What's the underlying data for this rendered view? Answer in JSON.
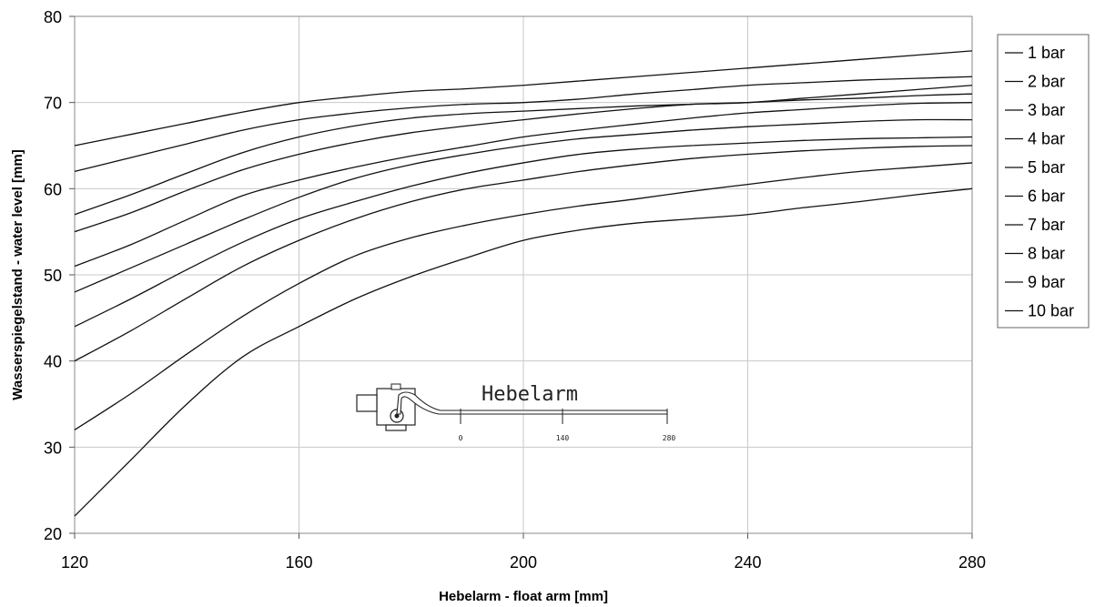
{
  "chart_data": {
    "type": "line",
    "xlabel": "Hebelarm - float arm [mm]",
    "ylabel": "Wasserspiegelstand - water level [mm]",
    "xlim": [
      120,
      280
    ],
    "ylim": [
      20,
      80
    ],
    "xticks": [
      120,
      160,
      200,
      240,
      280
    ],
    "yticks": [
      20,
      30,
      40,
      50,
      60,
      70,
      80
    ],
    "grid": true,
    "legend_position": "right",
    "x": [
      120,
      130,
      140,
      150,
      160,
      170,
      180,
      190,
      200,
      210,
      220,
      230,
      240,
      250,
      260,
      270,
      280
    ],
    "series": [
      {
        "name": "1 bar",
        "values": [
          65,
          66.3,
          67.6,
          68.9,
          70,
          70.7,
          71.3,
          71.6,
          72,
          72.5,
          73,
          73.5,
          74,
          74.5,
          75,
          75.5,
          76
        ]
      },
      {
        "name": "2 bar",
        "values": [
          62,
          63.6,
          65.2,
          66.8,
          68,
          68.8,
          69.4,
          69.8,
          70,
          70.4,
          71,
          71.5,
          72,
          72.3,
          72.6,
          72.8,
          73
        ]
      },
      {
        "name": "3 bar",
        "values": [
          57,
          59.3,
          61.8,
          64.2,
          66,
          67.3,
          68.2,
          68.7,
          69,
          69.3,
          69.6,
          69.8,
          70,
          70.5,
          71,
          71.5,
          72
        ]
      },
      {
        "name": "4 bar",
        "values": [
          55,
          57.2,
          59.8,
          62.2,
          64,
          65.4,
          66.5,
          67.3,
          68,
          68.7,
          69.3,
          69.8,
          70,
          70.3,
          70.5,
          70.8,
          71
        ]
      },
      {
        "name": "5 bar",
        "values": [
          51,
          53.5,
          56.4,
          59.2,
          61,
          62.5,
          63.8,
          64.9,
          66,
          66.8,
          67.5,
          68.2,
          68.8,
          69.2,
          69.6,
          69.9,
          70
        ]
      },
      {
        "name": "6 bar",
        "values": [
          48,
          50.8,
          53.6,
          56.4,
          59,
          61.2,
          62.8,
          64,
          65,
          65.8,
          66.3,
          66.8,
          67.2,
          67.5,
          67.8,
          68,
          68
        ]
      },
      {
        "name": "7 bar",
        "values": [
          44,
          47.2,
          50.6,
          53.8,
          56.5,
          58.5,
          60.3,
          61.8,
          63,
          64,
          64.6,
          65,
          65.3,
          65.6,
          65.8,
          65.9,
          66
        ]
      },
      {
        "name": "8 bar",
        "values": [
          40,
          43.5,
          47.3,
          51,
          54,
          56.5,
          58.5,
          60,
          61,
          62,
          62.8,
          63.5,
          64,
          64.4,
          64.7,
          64.9,
          65
        ]
      },
      {
        "name": "9 bar",
        "values": [
          32,
          36.2,
          40.8,
          45.2,
          49,
          52.2,
          54.3,
          55.8,
          57,
          58,
          58.8,
          59.7,
          60.5,
          61.3,
          62,
          62.5,
          63
        ]
      },
      {
        "name": "10 bar",
        "values": [
          22,
          28.5,
          35,
          40.5,
          44,
          47.2,
          49.8,
          52,
          54,
          55.2,
          56,
          56.5,
          57,
          57.8,
          58.5,
          59.3,
          60
        ]
      }
    ],
    "inset": {
      "title": "Hebelarm",
      "scale_labels": [
        "0",
        "140",
        "280"
      ]
    }
  }
}
